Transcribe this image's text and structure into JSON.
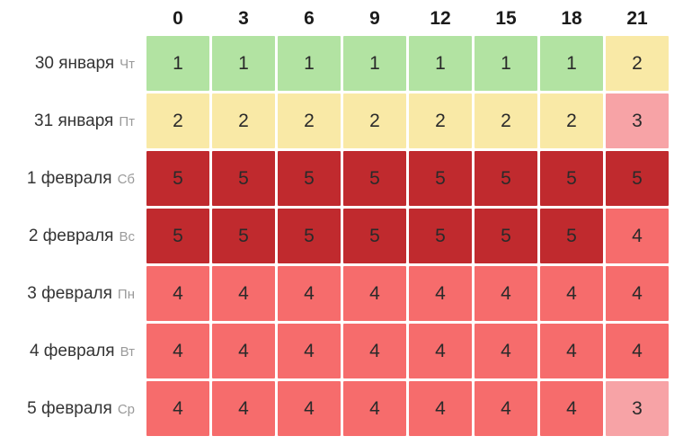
{
  "chart_data": {
    "type": "heatmap",
    "x_labels": [
      "0",
      "3",
      "6",
      "9",
      "12",
      "15",
      "18",
      "21"
    ],
    "rows": [
      {
        "date": "30 января",
        "weekday": "Чт",
        "values": [
          1,
          1,
          1,
          1,
          1,
          1,
          1,
          2
        ]
      },
      {
        "date": "31 января",
        "weekday": "Пт",
        "values": [
          2,
          2,
          2,
          2,
          2,
          2,
          2,
          3
        ]
      },
      {
        "date": "1 февраля",
        "weekday": "Сб",
        "values": [
          5,
          5,
          5,
          5,
          5,
          5,
          5,
          5
        ]
      },
      {
        "date": "2 февраля",
        "weekday": "Вс",
        "values": [
          5,
          5,
          5,
          5,
          5,
          5,
          5,
          4
        ]
      },
      {
        "date": "3 февраля",
        "weekday": "Пн",
        "values": [
          4,
          4,
          4,
          4,
          4,
          4,
          4,
          4
        ]
      },
      {
        "date": "4 февраля",
        "weekday": "Вт",
        "values": [
          4,
          4,
          4,
          4,
          4,
          4,
          4,
          4
        ]
      },
      {
        "date": "5 февраля",
        "weekday": "Ср",
        "values": [
          4,
          4,
          4,
          4,
          4,
          4,
          4,
          3
        ]
      }
    ],
    "value_colors": {
      "1": "#b2e3a2",
      "2": "#f9e9a6",
      "3": "#f7a3a6",
      "4": "#f66c6c",
      "5": "#c02a2e"
    },
    "layout": {
      "legend": "none",
      "grid_gap_color": "#ffffff"
    }
  }
}
